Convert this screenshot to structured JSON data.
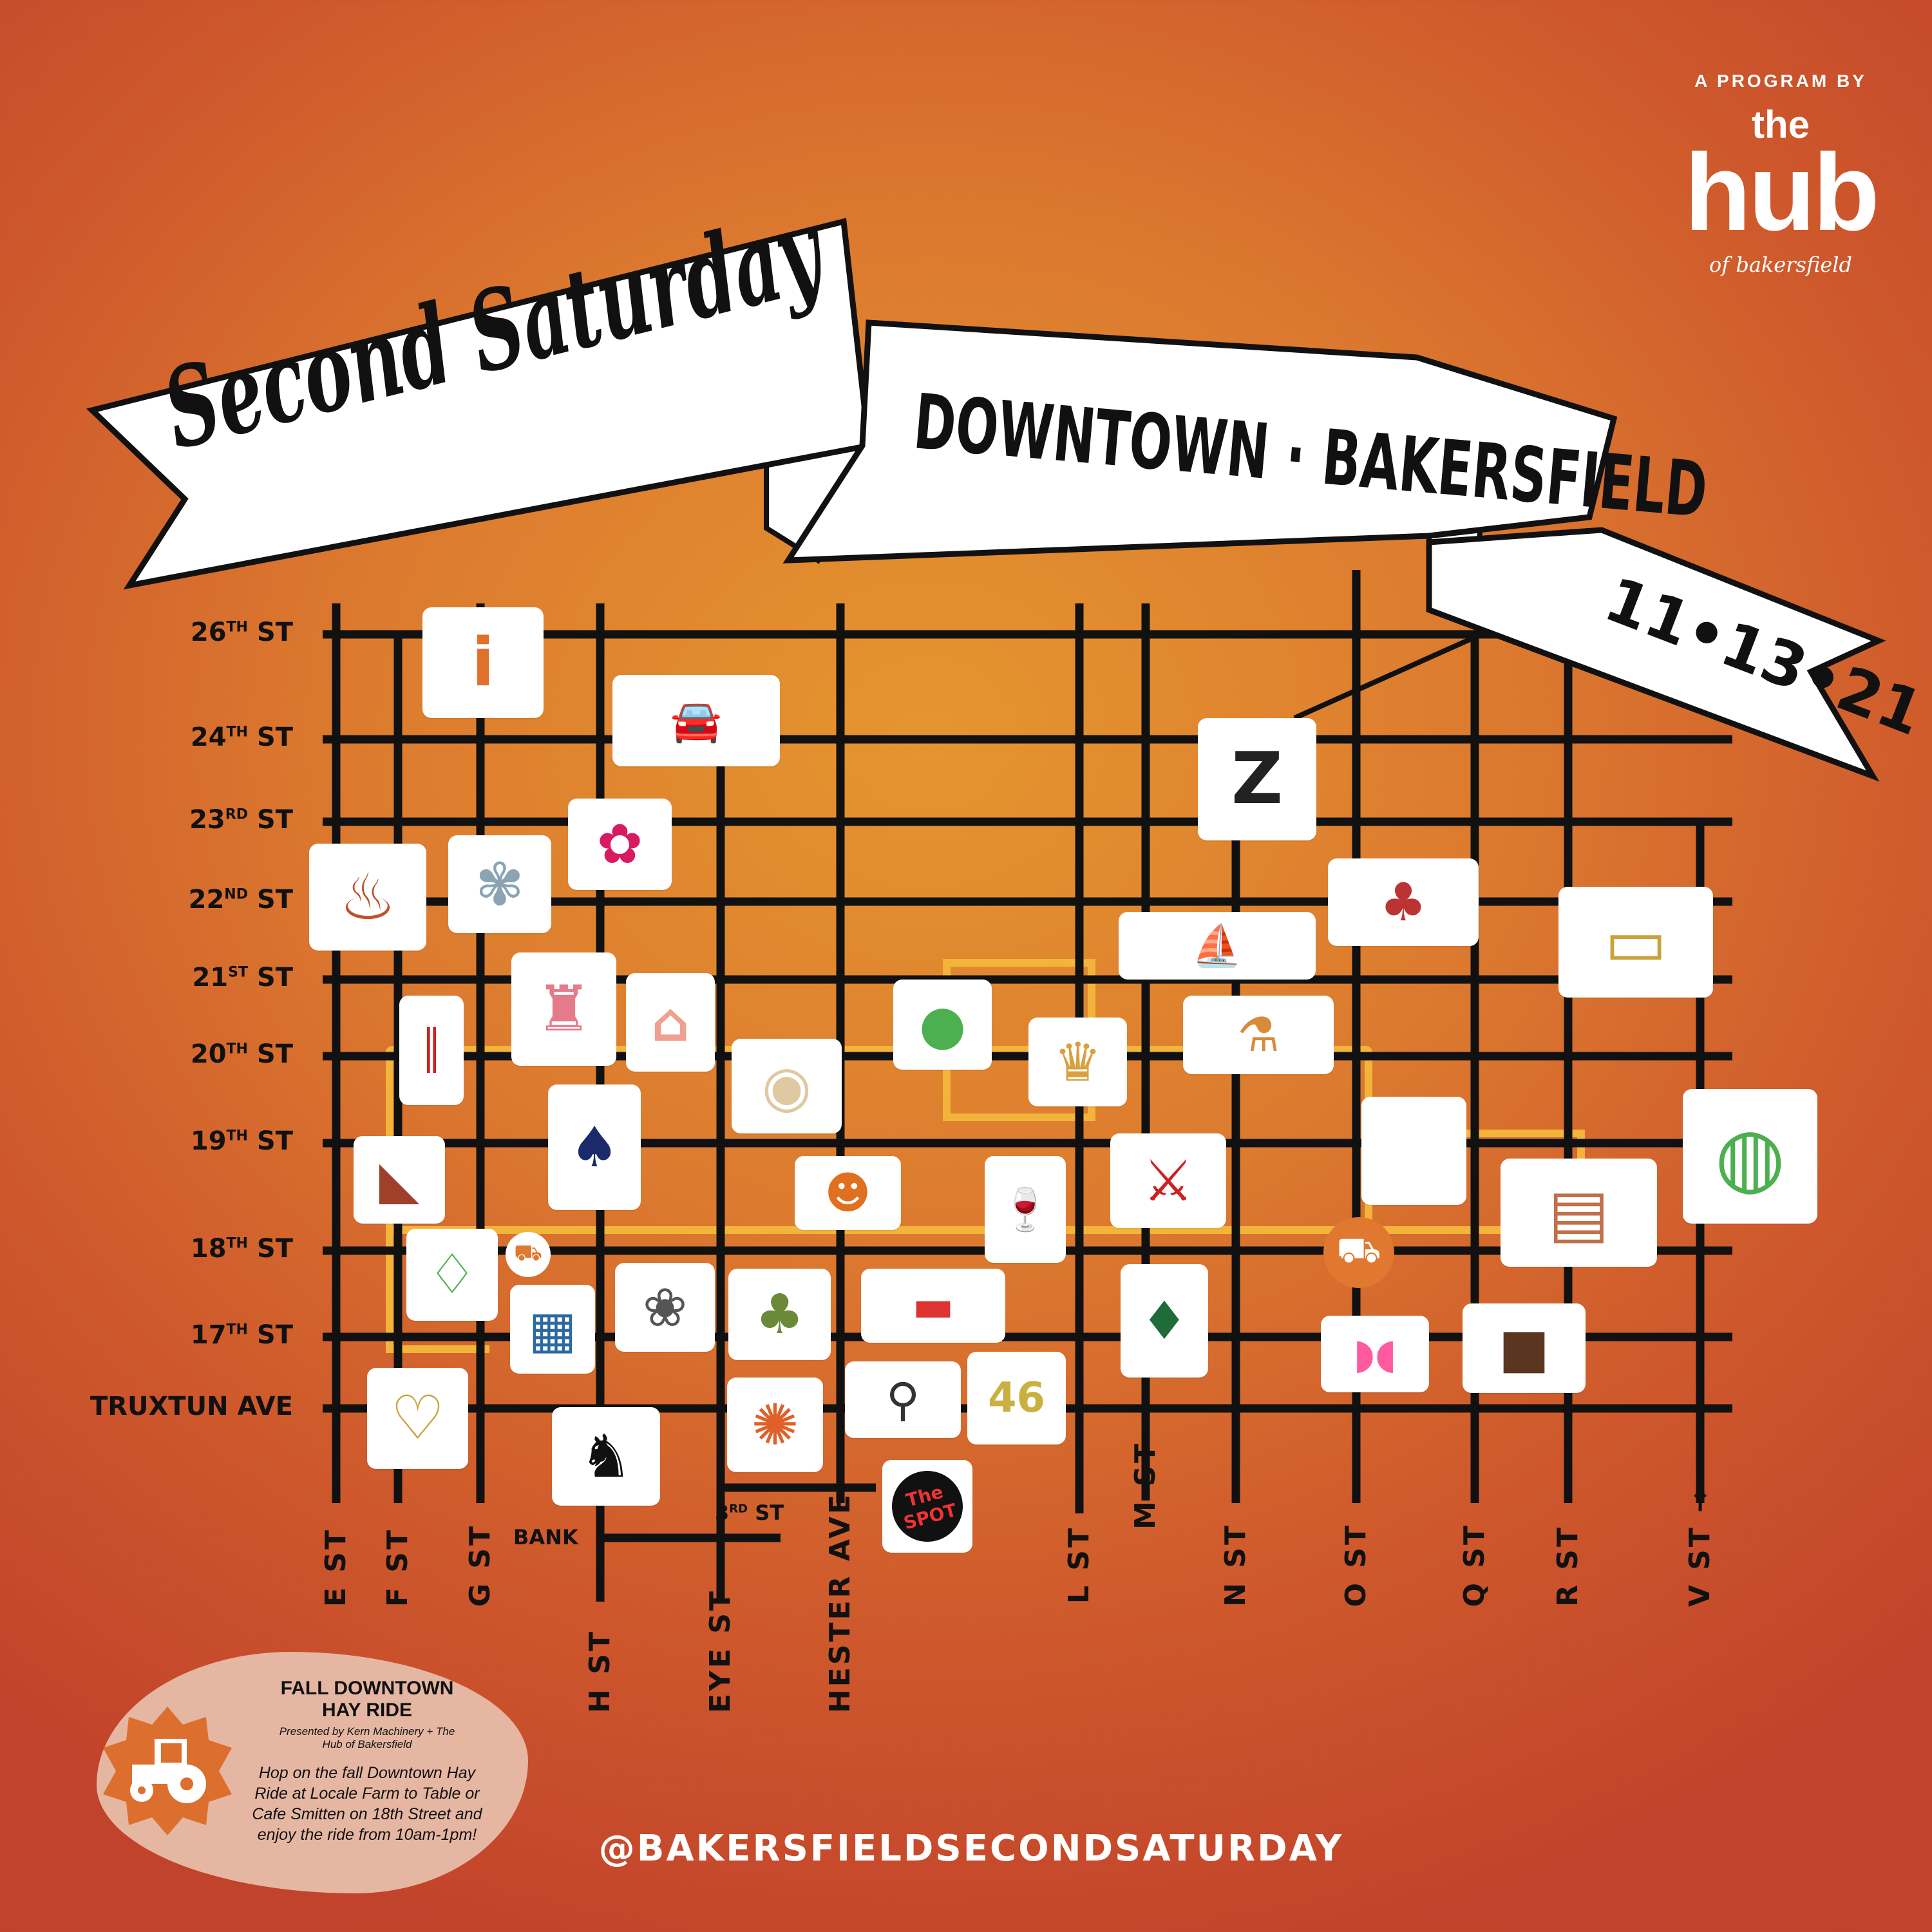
{
  "title": {
    "script": "Second Saturday",
    "location": "DOWNTOWN · BAKERSFIELD",
    "date": "11•13•21"
  },
  "logo": {
    "tagline": "A PROGRAM BY",
    "the": "the",
    "hub": "hub",
    "sub": "of bakersfield"
  },
  "streets": {
    "horizontal": [
      {
        "name": "26",
        "sup": "TH",
        "suffix": " ST"
      },
      {
        "name": "24",
        "sup": "TH",
        "suffix": " ST"
      },
      {
        "name": "23",
        "sup": "RD",
        "suffix": " ST"
      },
      {
        "name": "22",
        "sup": "ND",
        "suffix": " ST"
      },
      {
        "name": "21",
        "sup": "ST",
        "suffix": " ST"
      },
      {
        "name": "20",
        "sup": "TH",
        "suffix": " ST"
      },
      {
        "name": "19",
        "sup": "TH",
        "suffix": " ST"
      },
      {
        "name": "18",
        "sup": "TH",
        "suffix": " ST"
      },
      {
        "name": "17",
        "sup": "TH",
        "suffix": " ST"
      },
      {
        "name": "TRUXTUN AVE",
        "sup": "",
        "suffix": ""
      }
    ],
    "vertical": [
      "E ST",
      "F ST",
      "G ST",
      "H ST",
      "EYE ST",
      "HESTER AVE",
      "L ST",
      "M ST",
      "N ST",
      "O ST",
      "Q ST",
      "R ST",
      "V ST →"
    ],
    "bank": "BANK",
    "third": {
      "name": "3",
      "sup": "RD",
      "suffix": " ST"
    }
  },
  "markers": [
    {
      "icon": "info-icon",
      "glyph": "i",
      "color": "#e0702a"
    },
    {
      "icon": "car-icon",
      "glyph": "🚘",
      "color": "#2a6aa0"
    },
    {
      "icon": "art-design-logo-icon",
      "glyph": "Z",
      "color": "#222"
    },
    {
      "icon": "pink-flower-logo-icon",
      "glyph": "✿",
      "color": "#d81b60"
    },
    {
      "icon": "blue-flower-icon",
      "glyph": "✾",
      "color": "#8aa4b4"
    },
    {
      "icon": "grill-icon",
      "glyph": "♨",
      "color": "#c0522a"
    },
    {
      "icon": "toys-icon",
      "glyph": "♣",
      "color": "#b33"
    },
    {
      "icon": "picture-frames-icon",
      "glyph": "▭",
      "color": "#c9a23a"
    },
    {
      "icon": "ship-in-bottle-icon",
      "glyph": "⛵",
      "color": "#333"
    },
    {
      "icon": "barber-pole-icon",
      "glyph": "║",
      "color": "#c22"
    },
    {
      "icon": "grocery-bag-icon",
      "glyph": "♜",
      "color": "#e57a8a"
    },
    {
      "icon": "house-outline-icon",
      "glyph": "⌂",
      "color": "#f0a090"
    },
    {
      "icon": "black-cat-moon-icon",
      "glyph": "●",
      "color": "#4caf50"
    },
    {
      "icon": "armchair-icon",
      "glyph": "♛",
      "color": "#d9a040"
    },
    {
      "icon": "lab-flask-icon",
      "glyph": "⚗",
      "color": "#d98a3a"
    },
    {
      "icon": "paint-palette-icon",
      "glyph": "◉",
      "color": "#e0c8a0"
    },
    {
      "icon": "dress-icon",
      "glyph": "♠",
      "color": "#1a2a6a"
    },
    {
      "icon": "blank-icon",
      "glyph": "",
      "color": "#fff"
    },
    {
      "icon": "globe-icon",
      "glyph": "◍",
      "color": "#4caf50"
    },
    {
      "icon": "cake-slice-icon",
      "glyph": "◣",
      "color": "#a0402a"
    },
    {
      "icon": "orange-cat-icon",
      "glyph": "☻",
      "color": "#e07020"
    },
    {
      "icon": "wine-icon",
      "glyph": "🍷",
      "color": "#6a1a3a"
    },
    {
      "icon": "superheroes-icon",
      "glyph": "⚔",
      "color": "#c22"
    },
    {
      "icon": "radio-icon",
      "glyph": "▤",
      "color": "#c0704a"
    },
    {
      "icon": "bottle-outline-icon",
      "glyph": "♢",
      "color": "#4caf50"
    },
    {
      "icon": "building-icon",
      "glyph": "▦",
      "color": "#2a6aa0"
    },
    {
      "icon": "magnolia-icon",
      "glyph": "❀",
      "color": "#555"
    },
    {
      "icon": "tree-person-icon",
      "glyph": "♣",
      "color": "#6a8a3a"
    },
    {
      "icon": "skateboard-icon",
      "glyph": "▬",
      "color": "#d33"
    },
    {
      "icon": "pine-tree-diamond-icon",
      "glyph": "♦",
      "color": "#1f6b3a"
    },
    {
      "icon": "sunglasses-icon",
      "glyph": "◗◖",
      "color": "#ff5aa0"
    },
    {
      "icon": "brownie-icon",
      "glyph": "■",
      "color": "#5a3520"
    },
    {
      "icon": "necklace-icon",
      "glyph": "♡",
      "color": "#c9a23a"
    },
    {
      "icon": "mandala-icon",
      "glyph": "✺",
      "color": "#e0602a"
    },
    {
      "icon": "bicycle-icon",
      "glyph": "⚲",
      "color": "#333"
    },
    {
      "icon": "number-46-logo-icon",
      "glyph": "46",
      "color": "#c9b040"
    },
    {
      "icon": "dog-and-cat-icon",
      "glyph": "♞",
      "color": "#111"
    },
    {
      "icon": "the-spot-logo-icon",
      "glyph": "The SPOT",
      "color": "#c22"
    }
  ],
  "tractor_badges": [
    {
      "icon": "tractor-icon"
    },
    {
      "icon": "tractor-icon"
    }
  ],
  "hayride": {
    "title_line1": "FALL DOWNTOWN",
    "title_line2": "HAY RIDE",
    "presented": "Presented by Kern Machinery + The Hub of Bakersfield",
    "body": "Hop on the fall Downtown Hay Ride at Locale Farm to Table or Cafe Smitten on 18th Street and enjoy the ride from 10am-1pm!"
  },
  "handle": "@BAKERSFIELDSECONDSATURDAY",
  "colors": {
    "background_center": "#e5952f",
    "background_edge": "#c2432b",
    "route": "#f2b43a",
    "hayride_blob": "#e5b7a2",
    "badge": "#e07830"
  }
}
